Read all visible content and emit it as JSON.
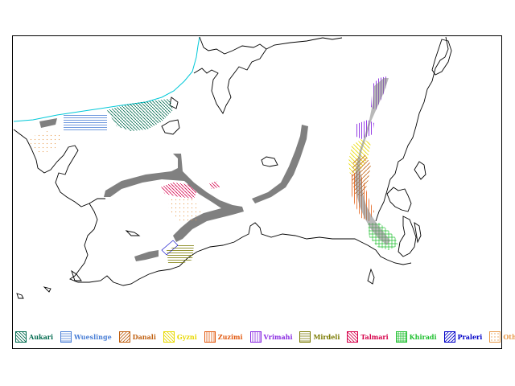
{
  "colors": {
    "coast": "#000000",
    "sea_line": "#00c8d8",
    "ice_band": "#808080",
    "background": "#ffffff"
  },
  "legend": [
    {
      "key": "aukari",
      "label": "Aukari",
      "color": "#006a4e",
      "pattern": "diag-back"
    },
    {
      "key": "wueslinge",
      "label": "Wueslinge",
      "color": "#4a7fd6",
      "pattern": "horizontal"
    },
    {
      "key": "danali",
      "label": "Danali",
      "color": "#c06010",
      "pattern": "diag-fwd"
    },
    {
      "key": "gyzni",
      "label": "Gyzni",
      "color": "#e8d800",
      "pattern": "diag-back"
    },
    {
      "key": "zuzimi",
      "label": "Zuzimi",
      "color": "#e25a10",
      "pattern": "vertical"
    },
    {
      "key": "vrimahi",
      "label": "Vrimahi",
      "color": "#8a2be2",
      "pattern": "vertical"
    },
    {
      "key": "mirdeli",
      "label": "Mirdeli",
      "color": "#7a7a00",
      "pattern": "horizontal"
    },
    {
      "key": "talmari",
      "label": "Talmari",
      "color": "#d6004a",
      "pattern": "diag-back"
    },
    {
      "key": "khiradi",
      "label": "Khiradi",
      "color": "#20c030",
      "pattern": "grid"
    },
    {
      "key": "praleri",
      "label": "Praleri",
      "color": "#0000c8",
      "pattern": "diag-fwd"
    },
    {
      "key": "other",
      "label": "Other",
      "color": "#e89a4a",
      "pattern": "dots"
    }
  ]
}
